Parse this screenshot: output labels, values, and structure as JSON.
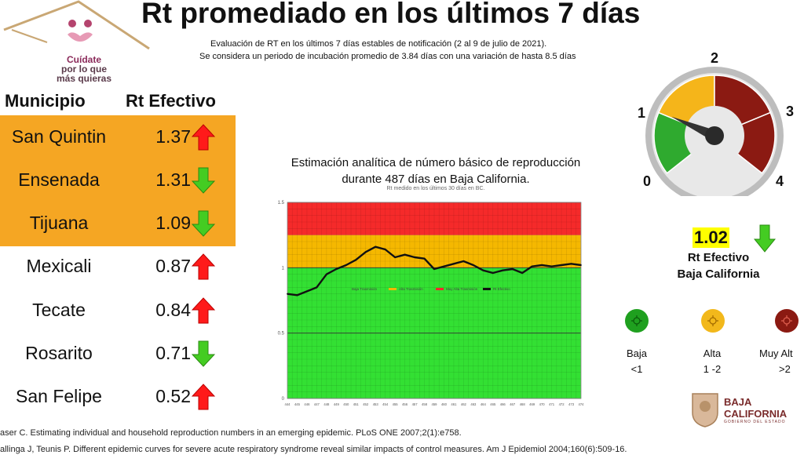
{
  "header": {
    "title": "Rt promediado en los últimos 7 días",
    "subtitle_line1": "Evaluación de RT en los últimos 7 días estables de notificación (2 al 9 de julio de 2021).",
    "subtitle_line2": "Se considera un periodo de incubación promedio de 3.84 días con una variación de hasta 8.5 días"
  },
  "logo": {
    "line1": "Cuídate",
    "line2": "por lo que",
    "line3": "más quieras"
  },
  "table": {
    "col_municipio": "Municipio",
    "col_rt": "Rt Efectivo",
    "rows": [
      {
        "municipio": "San Quintin",
        "rt": "1.37",
        "trend": "up",
        "highlight": true
      },
      {
        "municipio": "Ensenada",
        "rt": "1.31",
        "trend": "down",
        "highlight": true
      },
      {
        "municipio": "Tijuana",
        "rt": "1.09",
        "trend": "down",
        "highlight": true
      },
      {
        "municipio": "Mexicali",
        "rt": "0.87",
        "trend": "up",
        "highlight": false
      },
      {
        "municipio": "Tecate",
        "rt": "0.84",
        "trend": "up",
        "highlight": false
      },
      {
        "municipio": "Rosarito",
        "rt": "0.71",
        "trend": "down",
        "highlight": false
      },
      {
        "municipio": "San Felipe",
        "rt": "0.52",
        "trend": "up",
        "highlight": false
      }
    ]
  },
  "chart_data": {
    "type": "line",
    "title": "Estimación analítica de número básico de reproducción durante 487 días en Baja California.",
    "subtitle": "Rt medido en los últimos 30 días en BC.",
    "title_line1": "Estimación analítica de número básico de reproducción",
    "title_line2": "durante 487 días en Baja California.",
    "ylim": [
      0,
      1.5
    ],
    "yticks": [
      "0",
      "0.5",
      "1",
      "1.5"
    ],
    "ytick_values": [
      0,
      0.5,
      1,
      1.5
    ],
    "xlim": [
      444,
      474
    ],
    "zones": [
      {
        "name": "Baja Trasmisión",
        "from": 0,
        "to": 1,
        "color": "#33e033"
      },
      {
        "name": "Alta Trasmisión",
        "from": 1,
        "to": 1.25,
        "color": "#f5b800"
      },
      {
        "name": "Muy Alta Trasmisión",
        "from": 1.25,
        "to": 1.5,
        "color": "#f52a2a"
      }
    ],
    "legend": [
      "Baja Trasmisión",
      "Alta Trasmisión",
      "Muy Alta Trasmisión",
      "Rt Efectivo"
    ],
    "series": [
      {
        "name": "Rt Efectivo",
        "color": "#111111",
        "x": [
          444,
          445,
          446,
          447,
          448,
          449,
          450,
          451,
          452,
          453,
          454,
          455,
          456,
          457,
          458,
          459,
          460,
          461,
          462,
          463,
          464,
          465,
          466,
          467,
          468,
          469,
          470,
          471,
          472,
          473,
          474
        ],
        "values": [
          0.8,
          0.79,
          0.82,
          0.85,
          0.95,
          0.99,
          1.02,
          1.06,
          1.12,
          1.16,
          1.14,
          1.08,
          1.1,
          1.08,
          1.07,
          0.99,
          1.01,
          1.03,
          1.05,
          1.02,
          0.98,
          0.96,
          0.98,
          0.99,
          0.96,
          1.01,
          1.02,
          1.01,
          1.02,
          1.03,
          1.02
        ]
      }
    ]
  },
  "gauge": {
    "labels": [
      "0",
      "1",
      "2",
      "3",
      "4"
    ],
    "value": 1.02,
    "max": 4,
    "colors": {
      "low": "#2faa2f",
      "mid": "#f5b51a",
      "high": "#8b1a12"
    }
  },
  "summary": {
    "rt_value": "1.02",
    "rt_label_line1": "Rt Efectivo",
    "rt_label_line2": "Baja California",
    "trend": "down"
  },
  "categories": [
    {
      "name": "Baja",
      "range": "<1",
      "color": "#1fa01f"
    },
    {
      "name": "Alta",
      "range": "1 -2",
      "color": "#f2b81b"
    },
    {
      "name": "Muy Alt",
      "range": ">2",
      "color": "#8b1a12"
    }
  ],
  "references": [
    "aser C. Estimating individual and household reproduction numbers in an emerging epidemic. PLoS ONE 2007;2(1):e758.",
    "allinga J, Teunis P. Different epidemic curves for severe acute respiratory syndrome reveal similar impacts of control measures. Am J Epidemiol 2004;160(6):509-16."
  ],
  "brand": {
    "name_line1": "BAJA",
    "name_line2": "CALIFORNIA",
    "tagline": "GOBIERNO DEL ESTADO"
  },
  "colors": {
    "up_arrow": "#ff1a1a",
    "down_arrow": "#44cc22",
    "highlight": "#f5a623"
  }
}
